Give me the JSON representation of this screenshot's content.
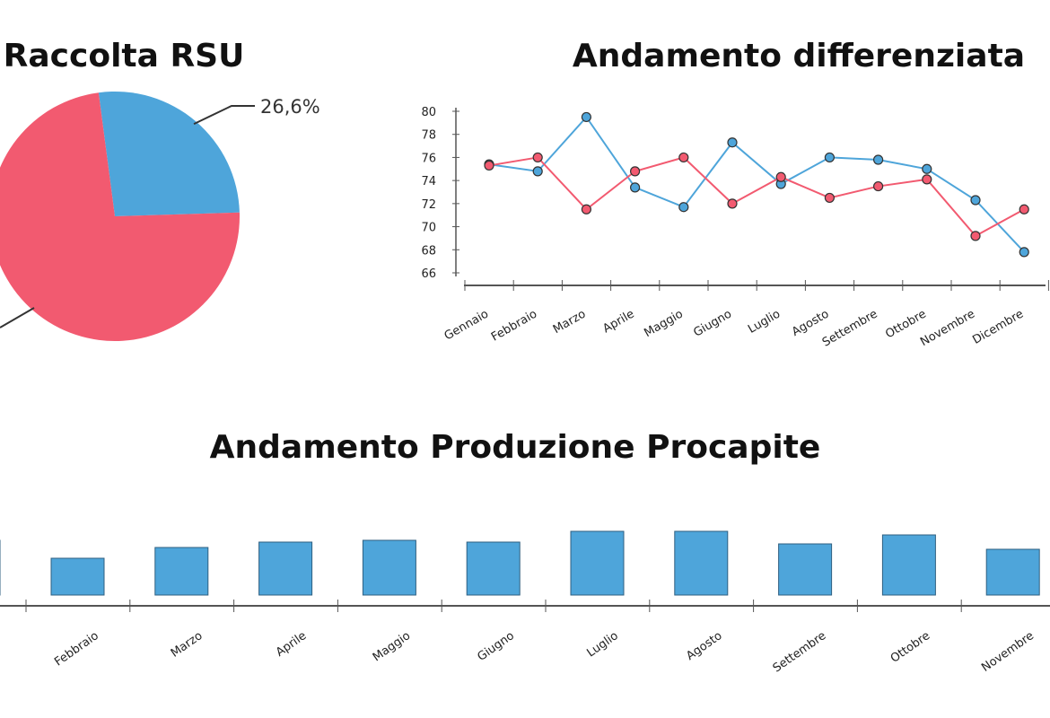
{
  "colors": {
    "blue": "#4ea5da",
    "red": "#f25a70",
    "axis": "#555555",
    "text": "#222222"
  },
  "chart_data": [
    {
      "type": "pie",
      "title": "Raccolta RSU",
      "slices": [
        {
          "label": "26,6%",
          "value": 26.6,
          "color": "#4ea5da"
        },
        {
          "label": "",
          "value": 73.4,
          "color": "#f25a70"
        }
      ]
    },
    {
      "type": "line",
      "title": "Andamento differenziata",
      "categories": [
        "Gennaio",
        "Febbraio",
        "Marzo",
        "Aprile",
        "Maggio",
        "Giugno",
        "Luglio",
        "Agosto",
        "Settembre",
        "Ottobre",
        "Novembre",
        "Dicembre"
      ],
      "ylim": [
        66,
        80
      ],
      "yticks": [
        "80",
        "78",
        "76",
        "74",
        "72",
        "70",
        "68",
        "66"
      ],
      "grid": false,
      "series": [
        {
          "values": [
            75.4,
            74.8,
            79.5,
            73.4,
            71.7,
            77.3,
            73.7,
            76.0,
            75.8,
            75.0,
            72.3,
            67.8
          ],
          "color": "#4ea5da"
        },
        {
          "values": [
            75.3,
            76.0,
            71.5,
            74.8,
            76.0,
            72.0,
            74.3,
            72.5,
            73.5,
            74.1,
            69.2,
            71.5
          ],
          "color": "#f25a70"
        }
      ]
    },
    {
      "type": "bar",
      "title": "Andamento Produzione Procapite",
      "categories": [
        "Febbraio",
        "Marzo",
        "Aprile",
        "Maggio",
        "Giugno",
        "Luglio",
        "Agosto",
        "Settembre",
        "Ottobre",
        "Novembre"
      ],
      "values": [
        41,
        53,
        59,
        61,
        59,
        71,
        71,
        57,
        67,
        51
      ],
      "ylim": [
        0,
        75
      ],
      "color": "#4ea5da"
    }
  ]
}
